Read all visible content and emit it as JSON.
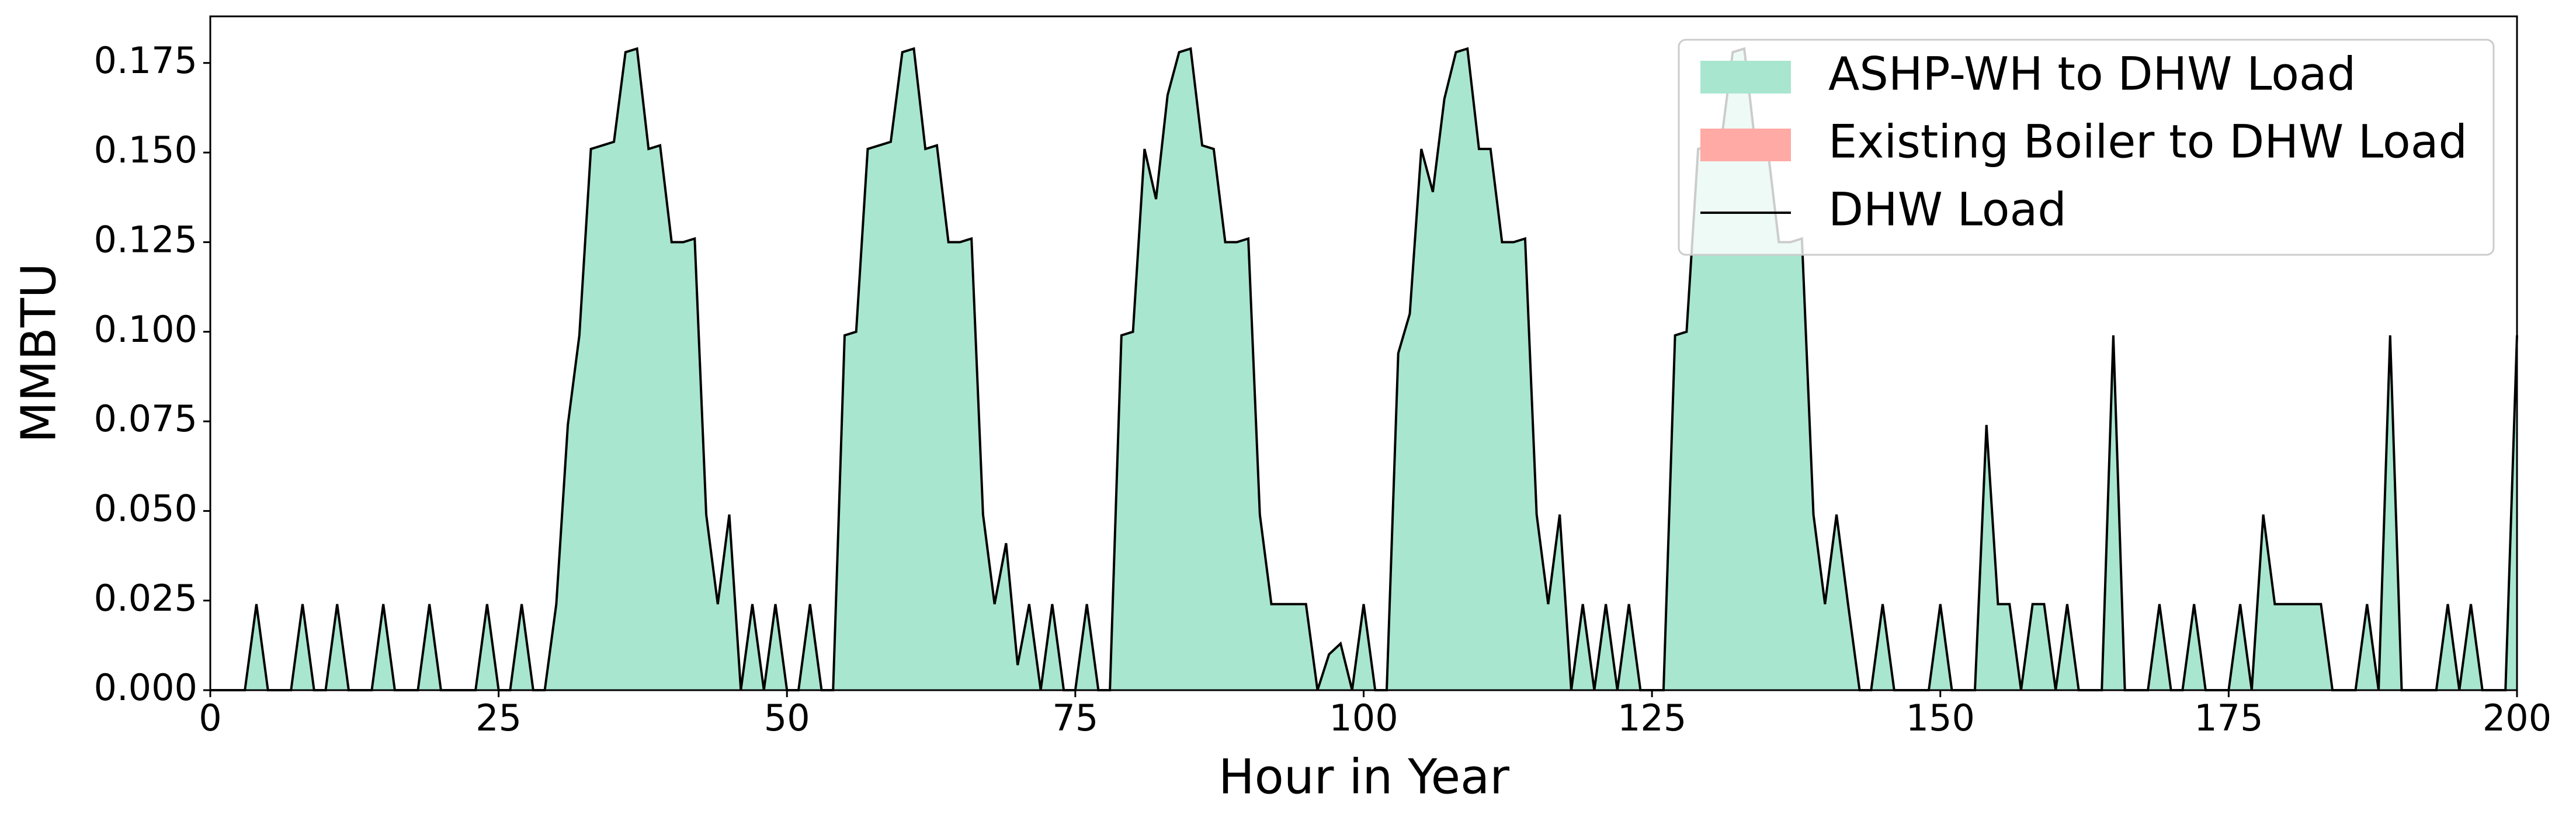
{
  "chart_data": {
    "type": "area",
    "xlabel": "Hour in Year",
    "ylabel": "MMBTU",
    "xlim": [
      0,
      200
    ],
    "xticks": [
      0,
      25,
      50,
      75,
      100,
      125,
      150,
      175,
      200
    ],
    "ylim": [
      0,
      0.188
    ],
    "yticks": [
      {
        "value": 0,
        "label": "0.000"
      },
      {
        "value": 0.025,
        "label": "0.025"
      },
      {
        "value": 0.05,
        "label": "0.050"
      },
      {
        "value": 0.075,
        "label": "0.075"
      },
      {
        "value": 0.1,
        "label": "0.100"
      },
      {
        "value": 0.125,
        "label": "0.125"
      },
      {
        "value": 0.15,
        "label": "0.150"
      },
      {
        "value": 0.175,
        "label": "0.175"
      }
    ],
    "legend": "upper right",
    "x": [
      0,
      1,
      2,
      3,
      4,
      5,
      6,
      7,
      8,
      9,
      10,
      11,
      12,
      13,
      14,
      15,
      16,
      17,
      18,
      19,
      20,
      21,
      22,
      23,
      24,
      25,
      26,
      27,
      28,
      29,
      30,
      31,
      32,
      33,
      34,
      35,
      36,
      37,
      38,
      39,
      40,
      41,
      42,
      43,
      44,
      45,
      46,
      47,
      48,
      49,
      50,
      51,
      52,
      53,
      54,
      55,
      56,
      57,
      58,
      59,
      60,
      61,
      62,
      63,
      64,
      65,
      66,
      67,
      68,
      69,
      70,
      71,
      72,
      73,
      74,
      75,
      76,
      77,
      78,
      79,
      80,
      81,
      82,
      83,
      84,
      85,
      86,
      87,
      88,
      89,
      90,
      91,
      92,
      93,
      94,
      95,
      96,
      97,
      98,
      99,
      100,
      101,
      102,
      103,
      104,
      105,
      106,
      107,
      108,
      109,
      110,
      111,
      112,
      113,
      114,
      115,
      116,
      117,
      118,
      119,
      120,
      121,
      122,
      123,
      124,
      125,
      126,
      127,
      128,
      129,
      130,
      131,
      132,
      133,
      134,
      135,
      136,
      137,
      138,
      139,
      140,
      141,
      142,
      143,
      144,
      145,
      146,
      147,
      148,
      149,
      150,
      151,
      152,
      153,
      154,
      155,
      156,
      157,
      158,
      159,
      160,
      161,
      162,
      163,
      164,
      165,
      166,
      167,
      168,
      169,
      170,
      171,
      172,
      173,
      174,
      175,
      176,
      177,
      178,
      179,
      180,
      181,
      182,
      183,
      184,
      185,
      186,
      187,
      188,
      189,
      190,
      191,
      192,
      193,
      194,
      195,
      196,
      197,
      198,
      199,
      200
    ],
    "series": [
      {
        "name": "ASHP-WH to DHW Load",
        "type": "area",
        "color": "#a8e6cf",
        "values": [
          0,
          0,
          0,
          0,
          0.024,
          0,
          0,
          0,
          0.024,
          0,
          0,
          0.024,
          0,
          0,
          0,
          0.024,
          0,
          0,
          0,
          0.024,
          0,
          0,
          0,
          0,
          0.024,
          0,
          0,
          0.024,
          0,
          0,
          0.024,
          0.074,
          0.099,
          0.151,
          0.152,
          0.153,
          0.178,
          0.179,
          0.151,
          0.152,
          0.125,
          0.125,
          0.126,
          0.049,
          0.024,
          0.049,
          0,
          0.024,
          0,
          0.024,
          0,
          0,
          0.024,
          0,
          0,
          0.099,
          0.1,
          0.151,
          0.152,
          0.153,
          0.178,
          0.179,
          0.151,
          0.152,
          0.125,
          0.125,
          0.126,
          0.049,
          0.024,
          0.041,
          0.007,
          0.024,
          0,
          0.024,
          0,
          0,
          0.024,
          0,
          0,
          0.099,
          0.1,
          0.151,
          0.137,
          0.166,
          0.178,
          0.179,
          0.152,
          0.151,
          0.125,
          0.125,
          0.126,
          0.049,
          0.024,
          0.024,
          0.024,
          0.024,
          0,
          0.01,
          0.013,
          0,
          0.024,
          0,
          0,
          0.094,
          0.105,
          0.151,
          0.139,
          0.165,
          0.178,
          0.179,
          0.151,
          0.151,
          0.125,
          0.125,
          0.126,
          0.049,
          0.024,
          0.049,
          0,
          0.024,
          0,
          0.024,
          0,
          0.024,
          0,
          0,
          0,
          0.099,
          0.1,
          0.151,
          0.152,
          0.153,
          0.178,
          0.179,
          0.151,
          0.152,
          0.125,
          0.125,
          0.126,
          0.049,
          0.024,
          0.049,
          0.024,
          0,
          0,
          0.024,
          0,
          0,
          0,
          0,
          0.024,
          0,
          0,
          0,
          0.074,
          0.024,
          0.024,
          0,
          0.024,
          0.024,
          0,
          0.024,
          0,
          0,
          0,
          0.099,
          0,
          0,
          0,
          0.024,
          0,
          0,
          0.024,
          0,
          0,
          0,
          0.024,
          0,
          0.049,
          0.024,
          0.024,
          0.024,
          0.024,
          0.024,
          0,
          0,
          0,
          0.024,
          0,
          0.099,
          0,
          0,
          0,
          0,
          0.024,
          0,
          0.024,
          0,
          0,
          0,
          0.099
        ]
      },
      {
        "name": "Existing Boiler to DHW Load",
        "type": "area",
        "color": "#ffaaa5",
        "values": [
          0,
          0,
          0,
          0,
          0,
          0,
          0,
          0,
          0,
          0,
          0,
          0,
          0,
          0,
          0,
          0,
          0,
          0,
          0,
          0,
          0,
          0,
          0,
          0,
          0,
          0,
          0,
          0,
          0,
          0,
          0,
          0,
          0,
          0,
          0,
          0,
          0,
          0,
          0,
          0,
          0,
          0,
          0,
          0,
          0,
          0,
          0,
          0,
          0,
          0,
          0,
          0,
          0,
          0,
          0,
          0,
          0,
          0,
          0,
          0,
          0,
          0,
          0,
          0,
          0,
          0,
          0,
          0,
          0,
          0,
          0,
          0,
          0,
          0,
          0,
          0,
          0,
          0,
          0,
          0,
          0,
          0,
          0,
          0,
          0,
          0,
          0,
          0,
          0,
          0,
          0,
          0,
          0,
          0,
          0,
          0,
          0,
          0,
          0,
          0,
          0,
          0,
          0,
          0,
          0,
          0,
          0,
          0,
          0,
          0,
          0,
          0,
          0,
          0,
          0,
          0,
          0,
          0,
          0,
          0,
          0,
          0,
          0,
          0,
          0,
          0,
          0,
          0,
          0,
          0,
          0,
          0,
          0,
          0,
          0,
          0,
          0,
          0,
          0,
          0,
          0,
          0,
          0,
          0,
          0,
          0,
          0,
          0,
          0,
          0,
          0,
          0,
          0,
          0,
          0,
          0,
          0,
          0,
          0,
          0,
          0,
          0,
          0,
          0,
          0,
          0,
          0,
          0,
          0,
          0,
          0,
          0,
          0,
          0,
          0,
          0,
          0,
          0,
          0,
          0,
          0,
          0,
          0,
          0,
          0,
          0,
          0,
          0,
          0,
          0,
          0,
          0,
          0,
          0,
          0,
          0,
          0,
          0,
          0,
          0,
          0
        ]
      },
      {
        "name": "DHW Load",
        "type": "line",
        "color": "#000000",
        "values": [
          0,
          0,
          0,
          0,
          0.024,
          0,
          0,
          0,
          0.024,
          0,
          0,
          0.024,
          0,
          0,
          0,
          0.024,
          0,
          0,
          0,
          0.024,
          0,
          0,
          0,
          0,
          0.024,
          0,
          0,
          0.024,
          0,
          0,
          0.024,
          0.074,
          0.099,
          0.151,
          0.152,
          0.153,
          0.178,
          0.179,
          0.151,
          0.152,
          0.125,
          0.125,
          0.126,
          0.049,
          0.024,
          0.049,
          0,
          0.024,
          0,
          0.024,
          0,
          0,
          0.024,
          0,
          0,
          0.099,
          0.1,
          0.151,
          0.152,
          0.153,
          0.178,
          0.179,
          0.151,
          0.152,
          0.125,
          0.125,
          0.126,
          0.049,
          0.024,
          0.041,
          0.007,
          0.024,
          0,
          0.024,
          0,
          0,
          0.024,
          0,
          0,
          0.099,
          0.1,
          0.151,
          0.137,
          0.166,
          0.178,
          0.179,
          0.152,
          0.151,
          0.125,
          0.125,
          0.126,
          0.049,
          0.024,
          0.024,
          0.024,
          0.024,
          0,
          0.01,
          0.013,
          0,
          0.024,
          0,
          0,
          0.094,
          0.105,
          0.151,
          0.139,
          0.165,
          0.178,
          0.179,
          0.151,
          0.151,
          0.125,
          0.125,
          0.126,
          0.049,
          0.024,
          0.049,
          0,
          0.024,
          0,
          0.024,
          0,
          0.024,
          0,
          0,
          0,
          0.099,
          0.1,
          0.151,
          0.152,
          0.153,
          0.178,
          0.179,
          0.151,
          0.152,
          0.125,
          0.125,
          0.126,
          0.049,
          0.024,
          0.049,
          0.024,
          0,
          0,
          0.024,
          0,
          0,
          0,
          0,
          0.024,
          0,
          0,
          0,
          0.074,
          0.024,
          0.024,
          0,
          0.024,
          0.024,
          0,
          0.024,
          0,
          0,
          0,
          0.099,
          0,
          0,
          0,
          0.024,
          0,
          0,
          0.024,
          0,
          0,
          0,
          0.024,
          0,
          0.049,
          0.024,
          0.024,
          0.024,
          0.024,
          0.024,
          0,
          0,
          0,
          0.024,
          0,
          0.099,
          0,
          0,
          0,
          0,
          0.024,
          0,
          0.024,
          0,
          0,
          0,
          0.099
        ]
      }
    ]
  }
}
